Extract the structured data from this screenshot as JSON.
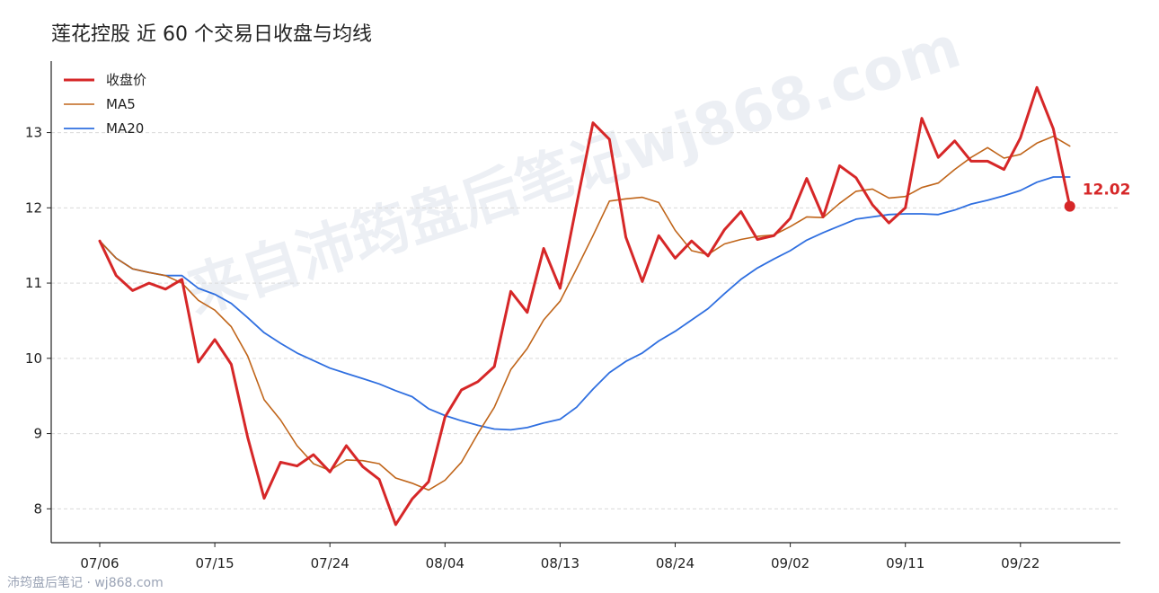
{
  "title": "莲花控股 近 60 个交易日收盘与均线",
  "watermark": "来自沛筠盘后笔记wj868.com",
  "footer": "沛筠盘后笔记 · wj868.com",
  "chart_data": {
    "type": "line",
    "title": "莲花控股 近 60 个交易日收盘与均线",
    "xlabel": "",
    "ylabel": "",
    "ylim": [
      7.55,
      13.95
    ],
    "yticks": [
      8,
      9,
      10,
      11,
      12,
      13
    ],
    "grid": "horizontal dashed",
    "legend_position": "top-left",
    "x_tick_labels": [
      "07/06",
      "07/15",
      "07/24",
      "08/04",
      "08/13",
      "08/24",
      "09/02",
      "09/11",
      "09/22"
    ],
    "x_tick_indices": [
      0,
      7,
      14,
      21,
      28,
      35,
      42,
      49,
      56
    ],
    "last_label": "12.02",
    "series": [
      {
        "name": "收盘价",
        "color": "#d62728",
        "values": [
          11.56,
          11.1,
          10.9,
          11.0,
          10.92,
          11.05,
          9.95,
          10.25,
          9.92,
          8.95,
          8.14,
          8.62,
          8.57,
          8.72,
          8.49,
          8.84,
          8.56,
          8.39,
          7.79,
          8.13,
          8.36,
          9.22,
          9.58,
          9.69,
          9.89,
          10.89,
          10.61,
          11.46,
          10.93,
          12.04,
          13.13,
          12.91,
          11.61,
          11.02,
          11.63,
          11.33,
          11.56,
          11.36,
          11.71,
          11.95,
          11.58,
          11.63,
          11.86,
          12.39,
          11.88,
          12.56,
          12.4,
          12.04,
          11.8,
          12.0,
          13.19,
          12.67,
          12.89,
          12.62,
          12.62,
          12.51,
          12.93,
          13.6,
          13.05,
          12.02
        ]
      },
      {
        "name": "MA5",
        "color": "#c0651a",
        "values": [
          11.56,
          11.33,
          11.19,
          11.14,
          11.1,
          11.0,
          10.77,
          10.64,
          10.42,
          10.03,
          9.45,
          9.18,
          8.84,
          8.6,
          8.51,
          8.65,
          8.64,
          8.6,
          8.41,
          8.34,
          8.25,
          8.38,
          8.62,
          9.0,
          9.35,
          9.85,
          10.13,
          10.51,
          10.76,
          11.19,
          11.63,
          12.09,
          12.12,
          12.14,
          12.07,
          11.7,
          11.43,
          11.38,
          11.52,
          11.58,
          11.62,
          11.64,
          11.75,
          11.88,
          11.87,
          12.06,
          12.22,
          12.25,
          12.13,
          12.15,
          12.27,
          12.33,
          12.51,
          12.67,
          12.8,
          12.66,
          12.71,
          12.86,
          12.95,
          12.82
        ]
      },
      {
        "name": "MA20",
        "color": "#2f6fe0",
        "values": [
          11.56,
          11.33,
          11.19,
          11.14,
          11.1,
          11.1,
          10.93,
          10.85,
          10.73,
          10.54,
          10.34,
          10.2,
          10.07,
          9.97,
          9.87,
          9.8,
          9.73,
          9.66,
          9.57,
          9.49,
          9.33,
          9.24,
          9.17,
          9.11,
          9.06,
          9.05,
          9.08,
          9.14,
          9.19,
          9.35,
          9.59,
          9.81,
          9.96,
          10.07,
          10.23,
          10.36,
          10.51,
          10.66,
          10.86,
          11.05,
          11.2,
          11.32,
          11.43,
          11.57,
          11.67,
          11.76,
          11.85,
          11.88,
          11.91,
          11.92,
          11.92,
          11.91,
          11.97,
          12.05,
          12.1,
          12.16,
          12.23,
          12.34,
          12.41,
          12.41
        ]
      }
    ]
  }
}
